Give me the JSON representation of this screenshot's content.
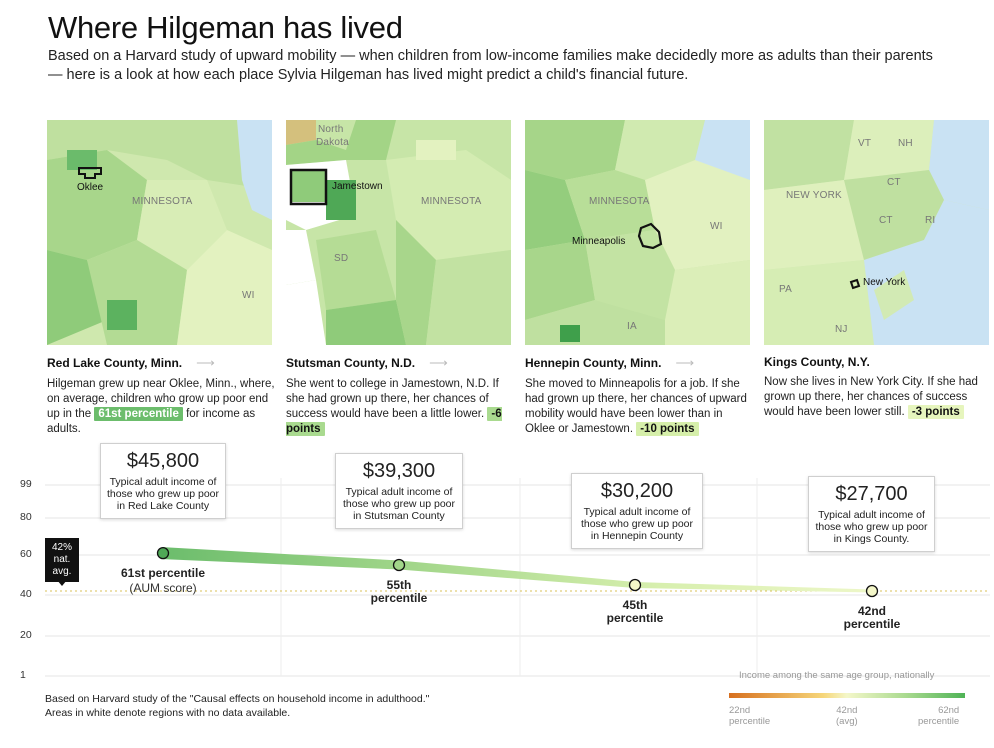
{
  "header": {
    "title": "Where Hilgeman has lived",
    "subtitle": "Based on a Harvard study of upward mobility — when children from low-income families make decidedly more as adults than their parents — here is a look at how each place Sylvia Hilgeman has lived might predict a child's financial future."
  },
  "maps": [
    {
      "labels": [
        "Oklee",
        "MINNESOTA",
        "WI"
      ]
    },
    {
      "labels": [
        "North",
        "Dakota",
        "Jamestown",
        "MINNESOTA",
        "SD"
      ]
    },
    {
      "labels": [
        "MINNESOTA",
        "WI",
        "Minneapolis",
        "IA"
      ]
    },
    {
      "labels": [
        "VT",
        "NH",
        "NEW YORK",
        "CT",
        "CT",
        "RI",
        "PA",
        "New York",
        "NJ"
      ]
    }
  ],
  "captions": [
    {
      "title": "Red Lake County, Minn.",
      "arrow": "⟶",
      "text_before": "Hilgeman grew up near Oklee, Minn., where, on average, children who grow up poor end up in the ",
      "highlight": "61st percentile",
      "text_after": " for income as adults."
    },
    {
      "title": "Stutsman County, N.D.",
      "arrow": "⟶",
      "text_before": "She went to college in Jamestown, N.D. If she had grown up there, her chances of success would have been a little lower. ",
      "highlight": "-6 points",
      "text_after": ""
    },
    {
      "title": "Hennepin County, Minn.",
      "arrow": "⟶",
      "text_before": "She moved to Minneapolis for a job. If she had grown up there, her chances of upward mobility would have been lower than in Oklee or Jamestown. ",
      "highlight": "-10 points",
      "text_after": ""
    },
    {
      "title": "Kings County, N.Y.",
      "arrow": "",
      "text_before": "Now she lives in New York City. If she had grown up there, her chances of success would have been lower still. ",
      "highlight": "-3 points",
      "text_after": ""
    }
  ],
  "chart_data": {
    "type": "line",
    "yticks": [
      "99",
      "80",
      "60",
      "40",
      "20",
      "1"
    ],
    "ylim": [
      1,
      99
    ],
    "national_avg": {
      "value": 42,
      "label_top": "42%",
      "label_mid": "nat.",
      "label_bot": "avg."
    },
    "points": [
      {
        "county": "Red Lake County",
        "percentile": 61,
        "income": "$45,800",
        "desc": "Typical adult income of those who grew up poor in Red Lake County",
        "label": "61st percentile",
        "sublabel": "(AUM score)"
      },
      {
        "county": "Stutsman County",
        "percentile": 55,
        "income": "$39,300",
        "desc": "Typical adult income of those who grew up poor in Stutsman County",
        "label": "55th",
        "sublabel": "percentile"
      },
      {
        "county": "Hennepin County",
        "percentile": 45,
        "income": "$30,200",
        "desc": "Typical adult income of those who grew up poor in Hennepin County",
        "label": "45th",
        "sublabel": "percentile"
      },
      {
        "county": "Kings County",
        "percentile": 42,
        "income": "$27,700",
        "desc": "Typical adult income of those who grew up poor in Kings County.",
        "label": "42nd",
        "sublabel": "percentile"
      }
    ]
  },
  "footer": {
    "line1": "Based on Harvard study of the \"Causal effects on household income in adulthood.\"",
    "line2": "Areas in white denote regions with no data available."
  },
  "legend": {
    "title": "Income among the same age group, nationally",
    "low": [
      "22nd",
      "percentile"
    ],
    "mid": [
      "42nd",
      "(avg)"
    ],
    "high": [
      "62nd",
      "percentile"
    ]
  }
}
